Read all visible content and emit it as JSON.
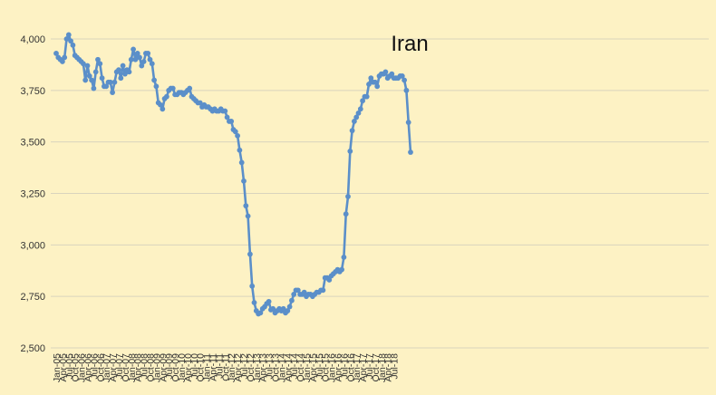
{
  "chart_data": {
    "type": "line",
    "title": "Iran",
    "xlabel": "",
    "ylabel": "",
    "ylim": [
      2500,
      4000
    ],
    "yticks": [
      "2,500",
      "2,750",
      "3,000",
      "3,250",
      "3,500",
      "3,750",
      "4,000"
    ],
    "grid": "horizontal",
    "legend": "none",
    "colors": {
      "series": "#5b8fc9",
      "background": "#fdf2c4",
      "grid": "#d9d4bd"
    },
    "x_tick_labels": [
      "Jan-05",
      "Apr-05",
      "Jul-05",
      "Oct-05",
      "Jan-06",
      "Apr-06",
      "Jul-06",
      "Oct-06",
      "Jan-07",
      "Apr-07",
      "Jul-07",
      "Oct-07",
      "Jan-08",
      "Apr-08",
      "Jul-08",
      "Oct-08",
      "Jan-09",
      "Apr-09",
      "Jul-09",
      "Oct-09",
      "Jan-10",
      "Apr-10",
      "Jul-10",
      "Oct-10",
      "Jan-11",
      "Apr-11",
      "Jul-11",
      "Oct-11",
      "Jan-12",
      "Apr-12",
      "Jul-12",
      "Oct-12",
      "Jan-13",
      "Apr-13",
      "Jul-13",
      "Oct-13",
      "Jan-14",
      "Apr-14",
      "Jul-14",
      "Oct-14",
      "Jan-15",
      "Apr-15",
      "Jul-15",
      "Oct-15",
      "Jan-16",
      "Apr-16",
      "Jul-16",
      "Oct-16",
      "Jan-17",
      "Apr-17",
      "Jul-17",
      "Oct-17",
      "Jan-18",
      "Apr-18",
      "Jul-18"
    ],
    "x_start": "Jan-05",
    "series": [
      {
        "values": [
          3930,
          3910,
          3900,
          3890,
          3910,
          4000,
          4020,
          3990,
          3970,
          3920,
          3910,
          3900,
          3890,
          3880,
          3800,
          3870,
          3820,
          3800,
          3760,
          3840,
          3900,
          3880,
          3810,
          3770,
          3770,
          3790,
          3790,
          3740,
          3790,
          3840,
          3850,
          3810,
          3870,
          3830,
          3850,
          3840,
          3900,
          3950,
          3900,
          3930,
          3910,
          3870,
          3890,
          3930,
          3930,
          3900,
          3880,
          3800,
          3770,
          3690,
          3680,
          3660,
          3710,
          3720,
          3750,
          3760,
          3760,
          3730,
          3730,
          3740,
          3740,
          3730,
          3740,
          3750,
          3760,
          3720,
          3710,
          3700,
          3690,
          3690,
          3670,
          3680,
          3670,
          3670,
          3660,
          3650,
          3660,
          3650,
          3650,
          3660,
          3650,
          3650,
          3620,
          3600,
          3600,
          3560,
          3550,
          3530,
          3460,
          3400,
          3310,
          3190,
          3140,
          2955,
          2800,
          2720,
          2680,
          2665,
          2670,
          2690,
          2700,
          2715,
          2725,
          2685,
          2690,
          2670,
          2680,
          2690,
          2680,
          2690,
          2670,
          2680,
          2700,
          2730,
          2760,
          2780,
          2780,
          2760,
          2760,
          2770,
          2750,
          2760,
          2760,
          2750,
          2760,
          2770,
          2770,
          2780,
          2780,
          2840,
          2840,
          2830,
          2850,
          2860,
          2870,
          2880,
          2870,
          2880,
          2940,
          3150,
          3235,
          3455,
          3555,
          3600,
          3620,
          3640,
          3660,
          3700,
          3720,
          3720,
          3780,
          3810,
          3790,
          3790,
          3770,
          3820,
          3830,
          3830,
          3840,
          3810,
          3820,
          3830,
          3810,
          3810,
          3810,
          3820,
          3820,
          3800,
          3750,
          3595,
          3450
        ]
      }
    ]
  }
}
